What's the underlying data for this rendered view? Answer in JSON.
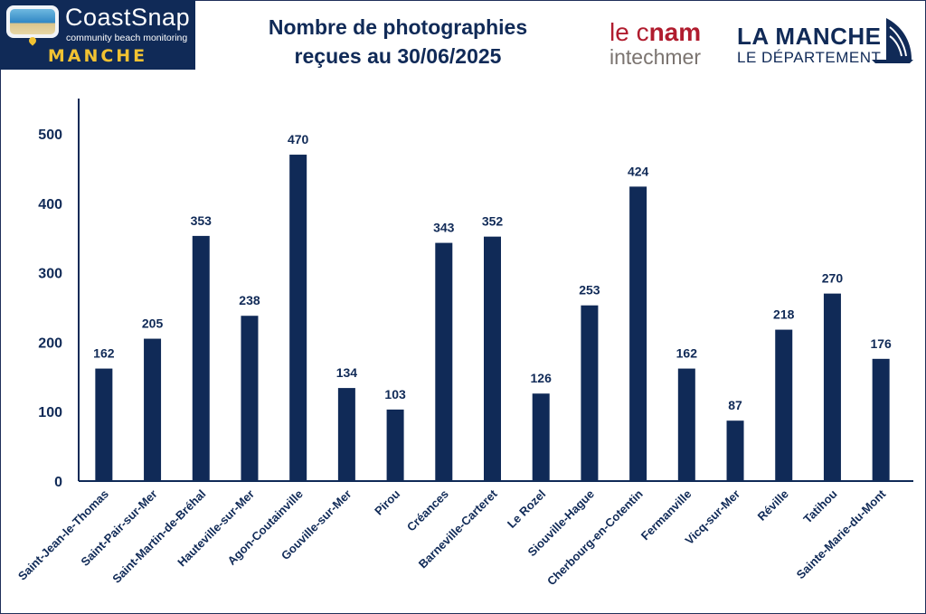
{
  "header": {
    "coastsnap_name": "CoastSnap",
    "coastsnap_tagline": "community beach monitoring",
    "coastsnap_region": "MANCHE",
    "title_line1": "Nombre de photographies",
    "title_line2": "reçues au 30/06/2025",
    "cnam_prefix": "le c",
    "cnam_bold": "nam",
    "cnam_sub": "intechmer",
    "dept_name": "LA MANCHE",
    "dept_sub": "LE DÉPARTEMENT"
  },
  "colors": {
    "bar": "#102a57",
    "text": "#102a57",
    "logo_bg": "#102a57",
    "accent": "#f1c232",
    "cnam_red": "#b01c2e"
  },
  "chart_data": {
    "type": "bar",
    "title": "Nombre de photographies reçues au 30/06/2025",
    "xlabel": "",
    "ylabel": "",
    "ylim": [
      0,
      500
    ],
    "yticks": [
      0,
      100,
      200,
      300,
      400,
      500
    ],
    "grid": false,
    "categories": [
      "Saint-Jean-le-Thomas",
      "Saint-Pair-sur-Mer",
      "Saint-Martin-de-Bréhal",
      "Hauteville-sur-Mer",
      "Agon-Coutainville",
      "Gouville-sur-Mer",
      "Pirou",
      "Créances",
      "Barneville-Carteret",
      "Le Rozel",
      "Siouville-Hague",
      "Cherbourg-en-Cotentin",
      "Fermanville",
      "Vicq-sur-Mer",
      "Réville",
      "Tatihou",
      "Sainte-Marie-du-Mont"
    ],
    "values": [
      162,
      205,
      353,
      238,
      470,
      134,
      103,
      343,
      352,
      126,
      253,
      424,
      162,
      87,
      218,
      270,
      176
    ]
  }
}
